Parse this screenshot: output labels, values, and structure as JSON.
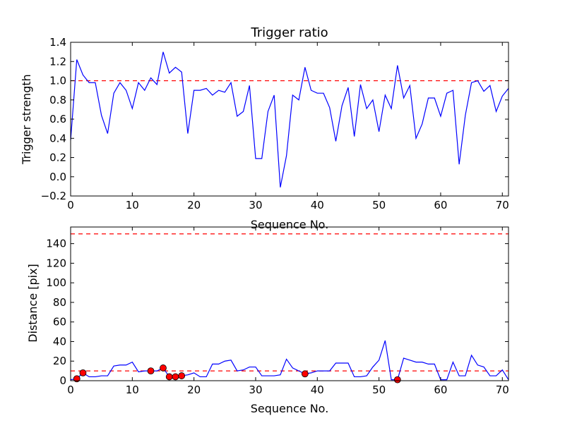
{
  "chart_data": [
    {
      "type": "line",
      "title": "Trigger ratio",
      "xlabel": "Sequence No.",
      "ylabel": "Trigger strength",
      "xlim": [
        0,
        71
      ],
      "ylim": [
        -0.2,
        1.4
      ],
      "xticks": [
        0,
        10,
        20,
        30,
        40,
        50,
        60,
        70
      ],
      "yticks": [
        -0.2,
        0.0,
        0.2,
        0.4,
        0.6,
        0.8,
        1.0,
        1.2,
        1.4
      ],
      "ytick_labels": [
        "−0.2",
        "0.0",
        "0.2",
        "0.4",
        "0.6",
        "0.8",
        "1.0",
        "1.2",
        "1.4"
      ],
      "grid": false,
      "series": [
        {
          "color": "#0000ff",
          "x": [
            0,
            1,
            2,
            3,
            4,
            5,
            6,
            7,
            8,
            9,
            10,
            11,
            12,
            13,
            14,
            15,
            16,
            17,
            18,
            19,
            20,
            21,
            22,
            23,
            24,
            25,
            26,
            27,
            28,
            29,
            30,
            31,
            32,
            33,
            34,
            35,
            36,
            37,
            38,
            39,
            40,
            41,
            42,
            43,
            44,
            45,
            46,
            47,
            48,
            49,
            50,
            51,
            52,
            53,
            54,
            55,
            56,
            57,
            58,
            59,
            60,
            61,
            62,
            63,
            64,
            65,
            66,
            67,
            68,
            69,
            70,
            71
          ],
          "values": [
            0.38,
            1.22,
            1.06,
            0.98,
            0.98,
            0.64,
            0.45,
            0.87,
            0.98,
            0.9,
            0.71,
            0.98,
            0.9,
            1.03,
            0.96,
            1.3,
            1.08,
            1.14,
            1.09,
            0.45,
            0.9,
            0.9,
            0.92,
            0.85,
            0.9,
            0.88,
            0.98,
            0.63,
            0.68,
            0.95,
            0.19,
            0.19,
            0.68,
            0.85,
            -0.11,
            0.22,
            0.85,
            0.8,
            1.14,
            0.9,
            0.87,
            0.87,
            0.72,
            0.37,
            0.74,
            0.93,
            0.42,
            0.96,
            0.71,
            0.8,
            0.47,
            0.85,
            0.71,
            1.16,
            0.82,
            0.95,
            0.4,
            0.55,
            0.82,
            0.82,
            0.63,
            0.87,
            0.9,
            0.13,
            0.64,
            0.98,
            1.0,
            0.89,
            0.95,
            0.68,
            0.84,
            0.92
          ]
        }
      ],
      "hlines": [
        {
          "y": 1.0,
          "color": "#ff0000",
          "style": "dashed"
        }
      ]
    },
    {
      "type": "line",
      "title": "",
      "xlabel": "Sequence No.",
      "ylabel": "Distance [pix]",
      "xlim": [
        0,
        71
      ],
      "ylim": [
        0,
        157
      ],
      "xticks": [
        0,
        10,
        20,
        30,
        40,
        50,
        60,
        70
      ],
      "yticks": [
        0,
        20,
        40,
        60,
        80,
        100,
        120,
        140
      ],
      "ytick_labels": [
        "0",
        "20",
        "40",
        "60",
        "80",
        "100",
        "120",
        "140"
      ],
      "grid": false,
      "series": [
        {
          "color": "#0000ff",
          "x": [
            0,
            1,
            2,
            3,
            4,
            5,
            6,
            7,
            8,
            9,
            10,
            11,
            12,
            13,
            14,
            15,
            16,
            17,
            18,
            19,
            20,
            21,
            22,
            23,
            24,
            25,
            26,
            27,
            28,
            29,
            30,
            31,
            32,
            33,
            34,
            35,
            36,
            37,
            38,
            39,
            40,
            41,
            42,
            43,
            44,
            45,
            46,
            47,
            48,
            49,
            50,
            51,
            52,
            53,
            54,
            55,
            56,
            57,
            58,
            59,
            60,
            61,
            62,
            63,
            64,
            65,
            66,
            67,
            68,
            69,
            70,
            71
          ],
          "values": [
            1,
            2,
            8,
            4,
            4,
            5,
            5,
            15,
            16,
            16,
            19,
            9,
            10,
            10,
            10,
            13,
            4,
            4,
            5,
            6,
            8,
            4,
            4,
            17,
            17,
            20,
            21,
            10,
            11,
            14,
            14,
            5,
            5,
            5,
            6,
            22,
            13,
            10,
            7,
            8,
            10,
            10,
            10,
            18,
            18,
            18,
            4,
            4,
            5,
            14,
            21,
            41,
            1,
            1,
            23,
            21,
            19,
            19,
            17,
            17,
            1,
            1,
            19,
            5,
            5,
            26,
            16,
            14,
            5,
            5,
            11,
            1
          ]
        }
      ],
      "markers": {
        "color": "#ff0000",
        "x": [
          1,
          2,
          13,
          15,
          16,
          17,
          18,
          38,
          53
        ],
        "values": [
          2,
          8,
          10,
          13,
          4,
          4,
          5,
          7,
          1
        ]
      },
      "hlines": [
        {
          "y": 10,
          "color": "#ff0000",
          "style": "dashed"
        },
        {
          "y": 150,
          "color": "#ff0000",
          "style": "dashed"
        }
      ]
    }
  ]
}
